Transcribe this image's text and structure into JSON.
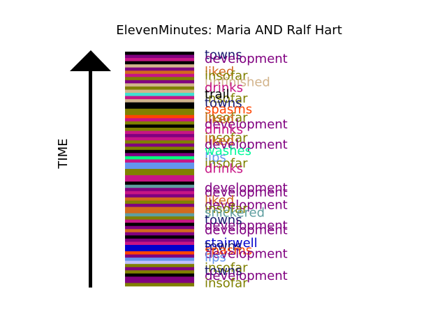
{
  "chart_data": {
    "type": "bar",
    "title": "ElevenMinutes: Maria AND Ralf Hart",
    "ylabel": "TIME",
    "grid": false,
    "legend": "none",
    "stripes": [
      {
        "c": "#000000"
      },
      {
        "c": "#800080"
      },
      {
        "c": "#c71585"
      },
      {
        "c": "#000000"
      },
      {
        "c": "#d2b48c"
      },
      {
        "c": "#800080"
      },
      {
        "c": "#d2691e"
      },
      {
        "c": "#c71585"
      },
      {
        "c": "#808000"
      },
      {
        "c": "#800080"
      },
      {
        "c": "#d2b48c"
      },
      {
        "c": "#808000"
      },
      {
        "c": "#d2b48c"
      },
      {
        "c": "#40e0d0"
      },
      {
        "c": "#c71585"
      },
      {
        "c": "#d2b48c"
      },
      {
        "c": "#000000"
      },
      {
        "c": "#000000"
      },
      {
        "c": "#808000"
      },
      {
        "c": "#808000"
      },
      {
        "c": "#ff4500"
      },
      {
        "c": "#c71585"
      },
      {
        "c": "#808000"
      },
      {
        "c": "#000000"
      },
      {
        "c": "#808000"
      },
      {
        "c": "#c71585"
      },
      {
        "c": "#800080"
      },
      {
        "c": "#c71585"
      },
      {
        "c": "#808000"
      },
      {
        "c": "#800080"
      },
      {
        "c": "#808000"
      },
      {
        "c": "#000000"
      },
      {
        "c": "#800080"
      },
      {
        "c": "#00ff7f"
      },
      {
        "c": "#c71585"
      },
      {
        "c": "#6495ed"
      },
      {
        "c": "#6495ed"
      },
      {
        "c": "#808000"
      },
      {
        "c": "#808000"
      },
      {
        "c": "#c71585"
      },
      {
        "c": "#c71585"
      },
      {
        "c": "#000000"
      },
      {
        "c": "#5f9ea0"
      },
      {
        "c": "#800080"
      },
      {
        "c": "#c71585"
      },
      {
        "c": "#800080"
      },
      {
        "c": "#d2691e"
      },
      {
        "c": "#808000"
      },
      {
        "c": "#800080"
      },
      {
        "c": "#d2691e"
      },
      {
        "c": "#d2691e"
      },
      {
        "c": "#5f9ea0"
      },
      {
        "c": "#808000"
      },
      {
        "c": "#c71585"
      },
      {
        "c": "#000000"
      },
      {
        "c": "#800080"
      },
      {
        "c": "#d2691e"
      },
      {
        "c": "#800080"
      },
      {
        "c": "#000000"
      },
      {
        "c": "#800080"
      },
      {
        "c": "#c71585"
      },
      {
        "c": "#0000cd"
      },
      {
        "c": "#0000cd"
      },
      {
        "c": "#ff4500"
      },
      {
        "c": "#800080"
      },
      {
        "c": "#6495ed"
      },
      {
        "c": "#c0c0ff"
      },
      {
        "c": "#808000"
      },
      {
        "c": "#800080"
      },
      {
        "c": "#808000"
      },
      {
        "c": "#000000"
      },
      {
        "c": "#800080"
      },
      {
        "c": "#800080"
      },
      {
        "c": "#808000"
      }
    ],
    "labels": [
      {
        "text": "towns",
        "color": "#191970",
        "pos": 0.01
      },
      {
        "text": "development",
        "color": "#800080",
        "pos": 0.027
      },
      {
        "text": "liked",
        "color": "#d2691e",
        "pos": 0.082
      },
      {
        "text": "insofar",
        "color": "#808000",
        "pos": 0.099
      },
      {
        "text": "unfinished",
        "color": "#d2b48c",
        "pos": 0.126
      },
      {
        "text": "drinks",
        "color": "#c71585",
        "pos": 0.15
      },
      {
        "text": "insofar",
        "color": "#808000",
        "pos": 0.196
      },
      {
        "text": "trail",
        "color": "#000000",
        "pos": 0.178
      },
      {
        "text": "towns",
        "color": "#191970",
        "pos": 0.216
      },
      {
        "text": "spasms",
        "color": "#ff4500",
        "pos": 0.243
      },
      {
        "text": "insofar",
        "color": "#808000",
        "pos": 0.279
      },
      {
        "text": "liked",
        "color": "#d2691e",
        "pos": 0.284
      },
      {
        "text": "development",
        "color": "#800080",
        "pos": 0.307
      },
      {
        "text": "drinks",
        "color": "#c71585",
        "pos": 0.329
      },
      {
        "text": "insofar",
        "color": "#808000",
        "pos": 0.365
      },
      {
        "text": "liked",
        "color": "#d2691e",
        "pos": 0.376
      },
      {
        "text": "development",
        "color": "#800080",
        "pos": 0.393
      },
      {
        "text": "washes",
        "color": "#00fa9a",
        "pos": 0.419
      },
      {
        "text": "lips",
        "color": "#6495ed",
        "pos": 0.448
      },
      {
        "text": "insofar",
        "color": "#808000",
        "pos": 0.473
      },
      {
        "text": "drinks",
        "color": "#c71585",
        "pos": 0.496
      },
      {
        "text": "development",
        "color": "#800080",
        "pos": 0.578
      },
      {
        "text": "development",
        "color": "#800080",
        "pos": 0.597
      },
      {
        "text": "liked",
        "color": "#d2691e",
        "pos": 0.631
      },
      {
        "text": "development",
        "color": "#800080",
        "pos": 0.651
      },
      {
        "text": "insofar",
        "color": "#808000",
        "pos": 0.666
      },
      {
        "text": "snickered",
        "color": "#5f9ea0",
        "pos": 0.683
      },
      {
        "text": "towns",
        "color": "#191970",
        "pos": 0.714
      },
      {
        "text": "development",
        "color": "#800080",
        "pos": 0.738
      },
      {
        "text": "development",
        "color": "#800080",
        "pos": 0.758
      },
      {
        "text": "stairwell",
        "color": "#0000cd",
        "pos": 0.813
      },
      {
        "text": "towns",
        "color": "#191970",
        "pos": 0.826
      },
      {
        "text": "spasms",
        "color": "#ff4500",
        "pos": 0.843
      },
      {
        "text": "development",
        "color": "#800080",
        "pos": 0.858
      },
      {
        "text": "lips",
        "color": "#6495ed",
        "pos": 0.874
      },
      {
        "text": "insofar",
        "color": "#808000",
        "pos": 0.918
      },
      {
        "text": "towns",
        "color": "#191970",
        "pos": 0.932
      },
      {
        "text": "development",
        "color": "#800080",
        "pos": 0.952
      },
      {
        "text": "insofar",
        "color": "#808000",
        "pos": 0.984
      }
    ]
  }
}
